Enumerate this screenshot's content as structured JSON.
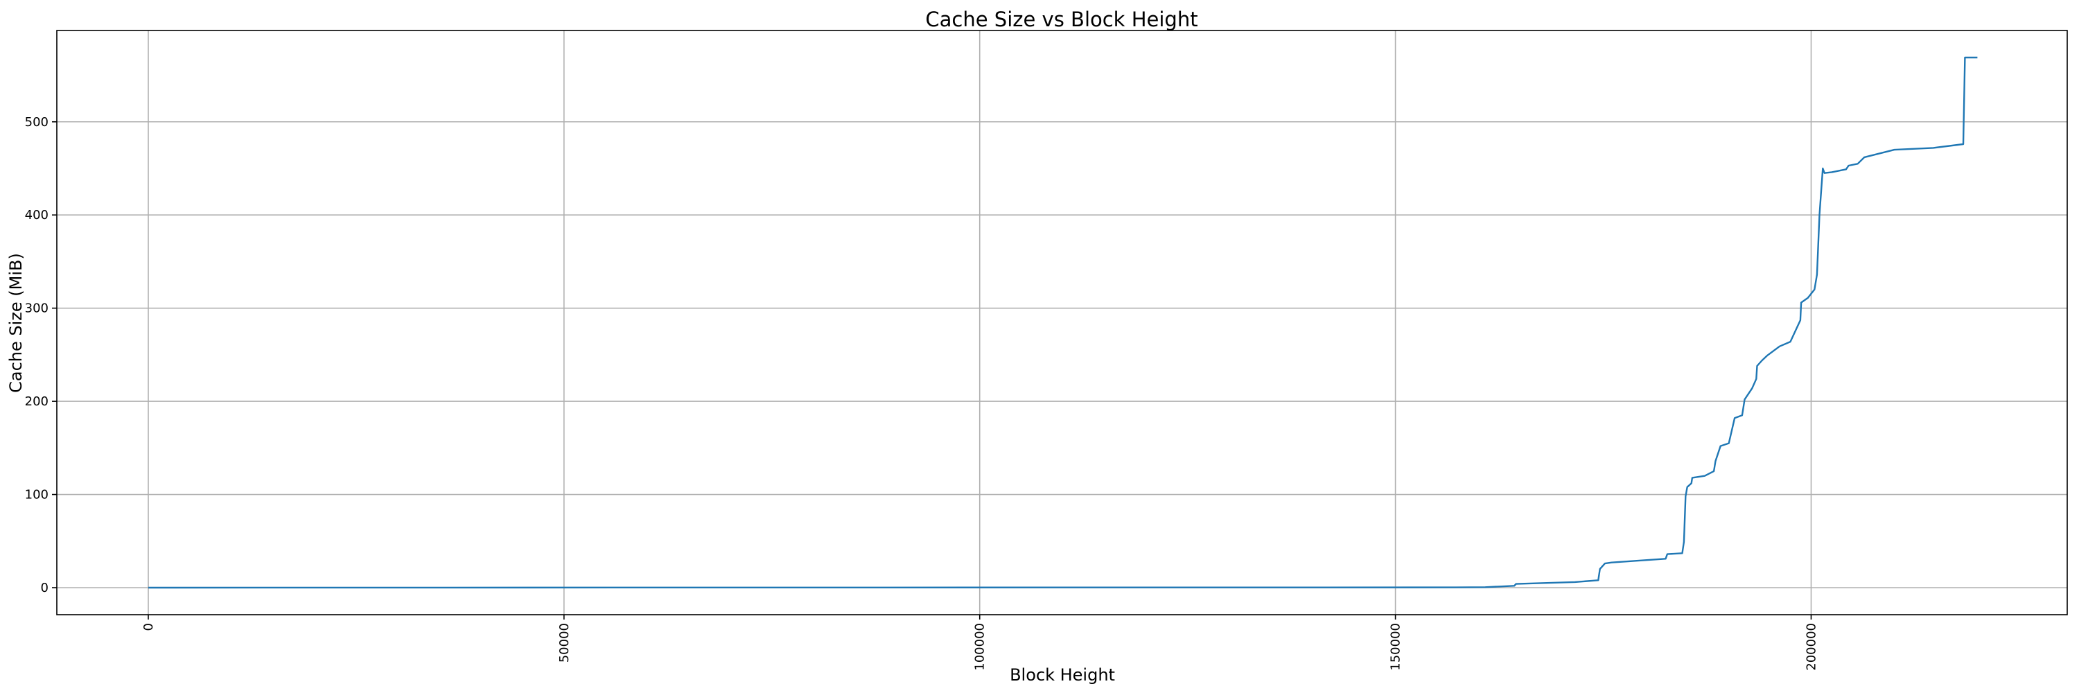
{
  "chart_data": {
    "type": "line",
    "title": "Cache Size vs Block Height",
    "xlabel": "Block Height",
    "ylabel": "Cache Size (MiB)",
    "xlim": [
      -11000,
      230800
    ],
    "ylim": [
      -29,
      598
    ],
    "xticks": [
      0,
      50000,
      100000,
      150000,
      200000
    ],
    "xtick_labels": [
      "0",
      "50000",
      "100000",
      "150000",
      "200000"
    ],
    "xtick_rotation": 90,
    "yticks": [
      0,
      100,
      200,
      300,
      400,
      500
    ],
    "ytick_labels": [
      "0",
      "100",
      "200",
      "300",
      "400",
      "500"
    ],
    "grid": true,
    "line_color": "#1f77b4",
    "series": [
      {
        "x": [
          0,
          157200,
          160800,
          164300,
          164500,
          171600,
          174400,
          174600,
          175200,
          176000,
          182500,
          182700,
          184500,
          184700,
          184900,
          185100,
          185600,
          185700,
          187200,
          188300,
          188500,
          189100,
          190100,
          190800,
          191700,
          192000,
          192900,
          193400,
          193500,
          194100,
          194700,
          196200,
          197500,
          198700,
          198800,
          199600,
          200400,
          200700,
          201000,
          201400,
          201600,
          202500,
          204200,
          204500,
          205600,
          206400,
          210000,
          214700,
          218300,
          218500,
          220000
        ],
        "y": [
          0,
          0.3,
          0.5,
          2,
          4,
          6,
          8,
          20,
          26,
          27,
          31,
          36,
          37,
          49,
          98,
          108,
          112,
          118,
          120,
          125,
          136,
          152,
          155,
          182,
          185,
          202,
          214,
          224,
          238,
          244,
          249,
          259,
          264,
          287,
          306,
          311,
          320,
          336,
          400,
          450,
          445,
          446,
          449,
          453,
          455,
          462,
          470,
          472,
          476,
          569,
          569
        ]
      }
    ]
  }
}
